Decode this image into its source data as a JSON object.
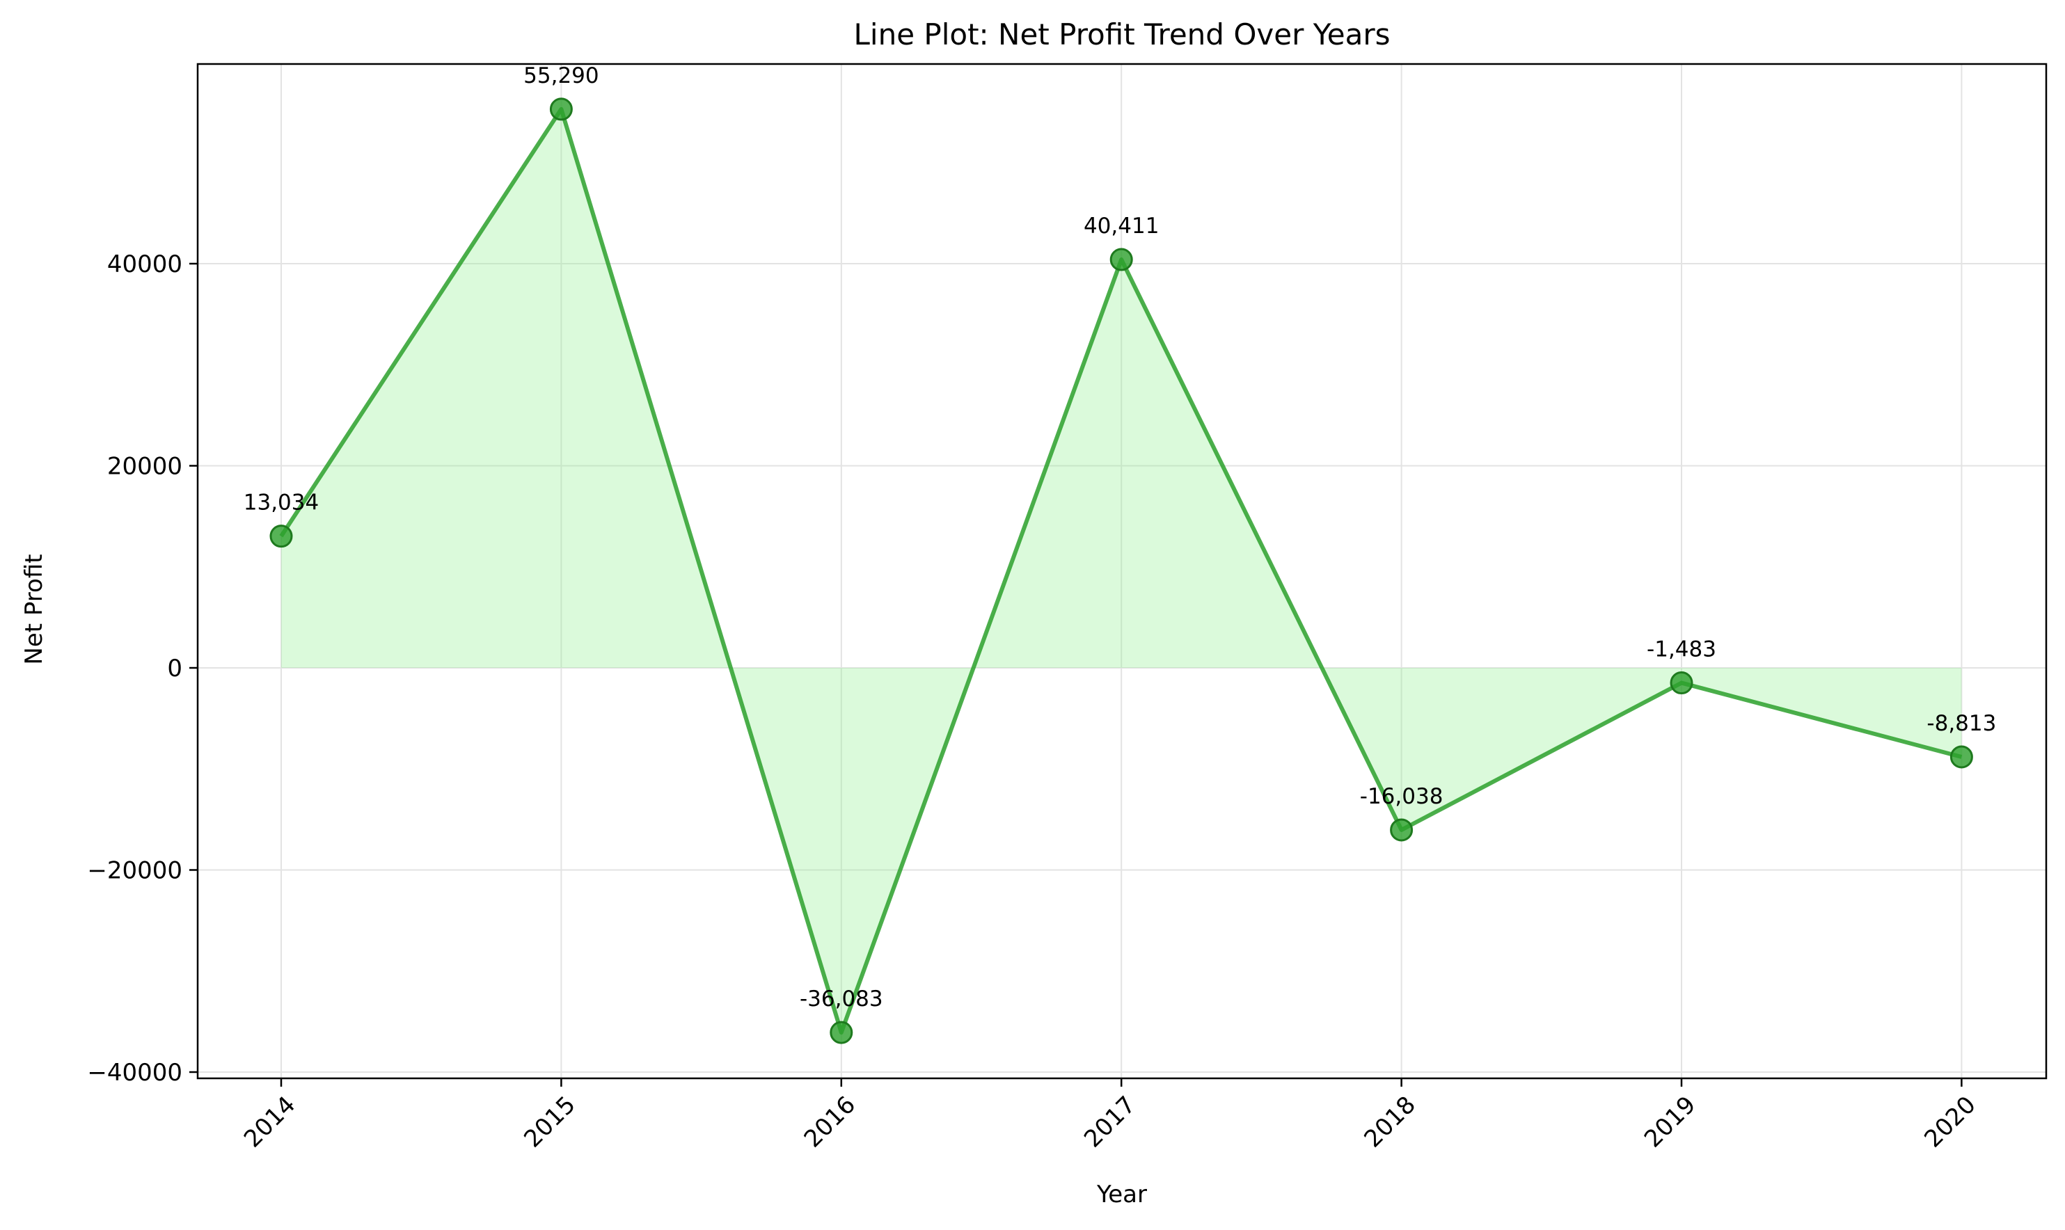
{
  "chart_data": {
    "type": "line",
    "title": "Line Plot: Net Profit Trend Over Years",
    "xlabel": "Year",
    "ylabel": "Net Profit",
    "categories": [
      "2014",
      "2015",
      "2016",
      "2017",
      "2018",
      "2019",
      "2020"
    ],
    "values": [
      13034,
      55290,
      -36083,
      40411,
      -16038,
      -1483,
      -8813
    ],
    "data_labels": [
      "13,034",
      "55,290",
      "-36,083",
      "40,411",
      "-16,038",
      "-1,483",
      "-8,813"
    ],
    "ylim": [
      -40000,
      60000
    ],
    "yticks": [
      -40000,
      -20000,
      0,
      20000,
      40000
    ],
    "ytick_labels": [
      "−40000",
      "−20000",
      "0",
      "20000",
      "40000"
    ],
    "grid": true,
    "fill_to_zero": true,
    "colors": {
      "line": "#2ca02c",
      "marker": "#2ca02c",
      "fill": "#90ee90",
      "grid": "#e3e3e3"
    }
  }
}
